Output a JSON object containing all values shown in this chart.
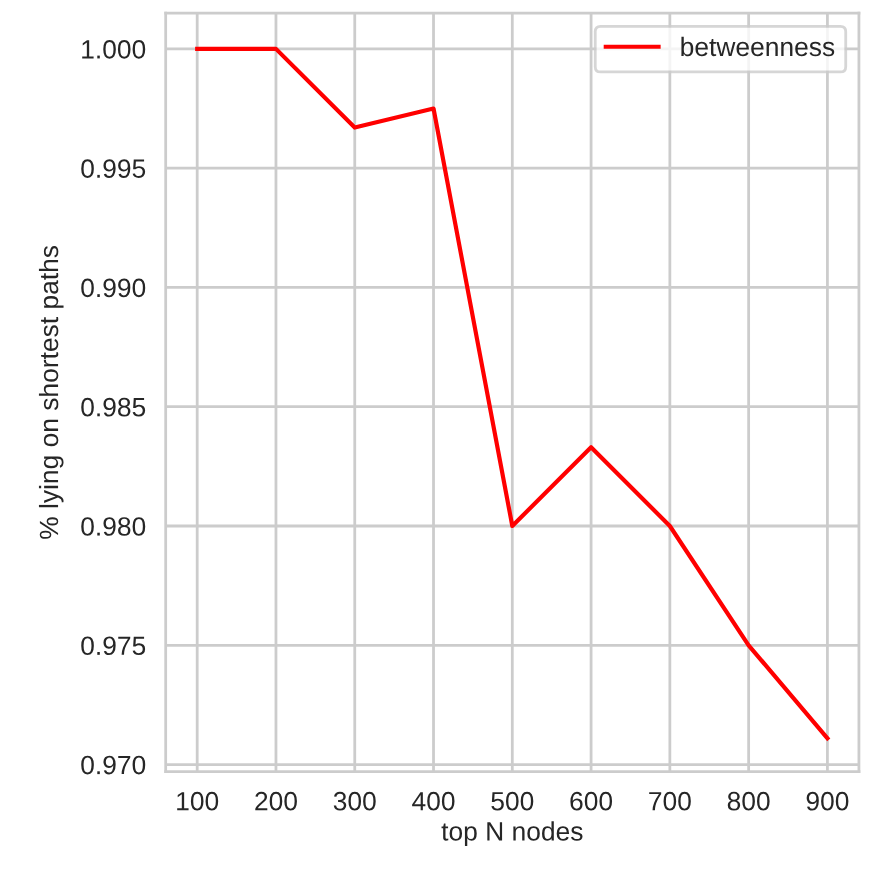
{
  "chart_data": {
    "type": "line",
    "xlabel": "top N nodes",
    "ylabel": "% lying on shortest paths",
    "x": [
      100,
      200,
      300,
      400,
      500,
      600,
      700,
      800,
      900
    ],
    "series": [
      {
        "name": "betweenness",
        "color": "#ff0000",
        "values": [
          1.0,
          1.0,
          0.9967,
          0.9975,
          0.98,
          0.9833,
          0.98,
          0.975,
          0.9711
        ]
      }
    ],
    "xlim": [
      60,
      940
    ],
    "ylim": [
      0.9697,
      1.0015
    ],
    "xticks": [
      100,
      200,
      300,
      400,
      500,
      600,
      700,
      800,
      900
    ],
    "yticks": [
      {
        "value": 0.97,
        "label": "0.970"
      },
      {
        "value": 0.975,
        "label": "0.975"
      },
      {
        "value": 0.98,
        "label": "0.980"
      },
      {
        "value": 0.985,
        "label": "0.985"
      },
      {
        "value": 0.99,
        "label": "0.990"
      },
      {
        "value": 0.995,
        "label": "0.995"
      },
      {
        "value": 1.0,
        "label": "1.000"
      }
    ],
    "grid": true,
    "legend": "top right",
    "line_style": "solid"
  }
}
